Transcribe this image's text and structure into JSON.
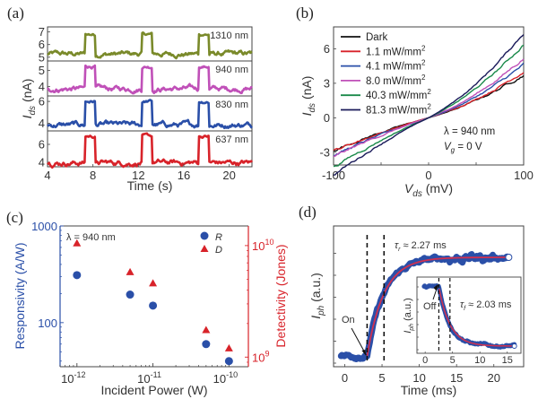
{
  "chart_data": [
    {
      "id": "a",
      "type": "line",
      "panel_label": "(a)",
      "xlabel": "Time (s)",
      "ylabel": "I_ds (nA)",
      "ylabel_main": "I",
      "ylabel_sub": "ds",
      "ylabel_unit": " (nA)",
      "xlim": [
        4,
        22
      ],
      "xticks": [
        4,
        8,
        12,
        16,
        20
      ],
      "on_intervals": [
        [
          7.3,
          8.2
        ],
        [
          12.3,
          13.2
        ],
        [
          17.3,
          18.2
        ]
      ],
      "series": [
        {
          "name": "1310 nm",
          "color": "#7a8a2a",
          "ylim": [
            4.7,
            7.4
          ],
          "yticks": [
            5,
            6,
            7
          ],
          "off_level": 5.25,
          "on_level": 6.8
        },
        {
          "name": "940 nm",
          "color": "#c050b8",
          "ylim": [
            3.4,
            5.6
          ],
          "yticks": [
            4,
            5
          ],
          "off_level": 3.85,
          "on_level": 5.25
        },
        {
          "name": "830 nm",
          "color": "#2a4fa8",
          "ylim": [
            3.3,
            6.5
          ],
          "yticks": [
            4,
            6
          ],
          "off_level": 3.85,
          "on_level": 6.0
        },
        {
          "name": "637 nm",
          "color": "#d8232a",
          "ylim": [
            3.5,
            7.5
          ],
          "yticks": [
            4,
            6
          ],
          "off_level": 3.95,
          "on_level": 6.9
        }
      ]
    },
    {
      "id": "b",
      "type": "line",
      "panel_label": "(b)",
      "xlabel_main": "V",
      "xlabel_sub": "ds",
      "xlabel_unit": " (mV)",
      "ylabel_main": "I",
      "ylabel_sub": "ds",
      "ylabel_unit": " (nA)",
      "xlim": [
        -100,
        100
      ],
      "ylim": [
        -4.1,
        7.9
      ],
      "xticks": [
        -100,
        0,
        100
      ],
      "yticks": [
        -3,
        0,
        3,
        6
      ],
      "annotation_1": "λ = 940 nm",
      "annotation_2_main": "V",
      "annotation_2_sub": "g",
      "annotation_2_rest": " = 0 V",
      "series": [
        {
          "name": "Dark",
          "color": "#111111",
          "y_at_minus100": -2.8,
          "y_at_plus100": 3.8
        },
        {
          "name": "1.1 mW/mm²",
          "color": "#d8232a",
          "y_at_minus100": -2.9,
          "y_at_plus100": 4.1
        },
        {
          "name": "4.1 mW/mm²",
          "color": "#2a4fa8",
          "y_at_minus100": -3.3,
          "y_at_plus100": 4.6
        },
        {
          "name": "8.0 mW/mm²",
          "color": "#c050b8",
          "y_at_minus100": -3.4,
          "y_at_plus100": 5.2
        },
        {
          "name": "40.3 mW/mm²",
          "color": "#1a8a4a",
          "y_at_minus100": -4.3,
          "y_at_plus100": 6.4
        },
        {
          "name": "81.3 mW/mm²",
          "color": "#1a1a5a",
          "y_at_minus100": -5.0,
          "y_at_plus100": 7.4
        }
      ]
    },
    {
      "id": "c",
      "type": "scatter",
      "panel_label": "(c)",
      "xlabel": "Incident Power (W)",
      "ylabel_left": "Responsivity (A/W)",
      "ylabel_right": "Detectivity (Jones)",
      "xscale": "log",
      "xlim": [
        6e-13,
        1.8e-10
      ],
      "xticks": [
        "10-12",
        "10-11",
        "10-10"
      ],
      "xtick_values": [
        1e-12,
        1e-11,
        1e-10
      ],
      "ylim_left": [
        35,
        1000
      ],
      "yticks_left": [
        100,
        1000
      ],
      "ylim_right": [
        820000000.0,
        15000000000.0
      ],
      "yticks_right_values": [
        1000000000.0,
        10000000000.0
      ],
      "left_color": "#2a4fa8",
      "right_color": "#d8232a",
      "annotation": "λ = 940 nm",
      "legend": [
        {
          "name": "R",
          "marker": "circle"
        },
        {
          "name": "D",
          "marker": "triangle"
        }
      ],
      "x": [
        1e-12,
        5e-12,
        1e-11,
        5e-11,
        1e-10
      ],
      "series": [
        {
          "name": "R",
          "axis": "left",
          "values": [
            310,
            195,
            150,
            60,
            40
          ]
        },
        {
          "name": "D",
          "axis": "right",
          "values": [
            10500000000.0,
            5800000000.0,
            4600000000.0,
            1750000000.0,
            1200000000.0
          ]
        }
      ]
    },
    {
      "id": "d",
      "type": "line",
      "panel_label": "(d)",
      "xlabel": "Time (ms)",
      "ylabel_main": "I",
      "ylabel_sub": "ph",
      "ylabel_unit": " (a.u.)",
      "xlim": [
        -1.5,
        24
      ],
      "xticks": [
        0,
        5,
        10,
        15,
        20
      ],
      "data_color": "#2a4fa8",
      "fit_color": "#d03050",
      "on_time": 3.0,
      "rise_marker": 5.27,
      "annotation_on": "On",
      "tau_rise_symbol": "τ",
      "tau_rise_sub": "r",
      "tau_rise_text": " ≈ 2.27 ms",
      "tau_rise_ms": 2.27,
      "inset": {
        "xlim": [
          -1.5,
          17.5
        ],
        "xticks": [
          0,
          5,
          10,
          15
        ],
        "ylabel_main": "I",
        "ylabel_sub": "ph",
        "ylabel_unit": " (a.u.)",
        "off_time": 2.5,
        "fall_marker": 4.53,
        "annotation_off": "Off",
        "tau_fall_symbol": "τ",
        "tau_fall_sub": "f",
        "tau_fall_text": " ≈ 2.03 ms",
        "tau_fall_ms": 2.03
      }
    }
  ]
}
